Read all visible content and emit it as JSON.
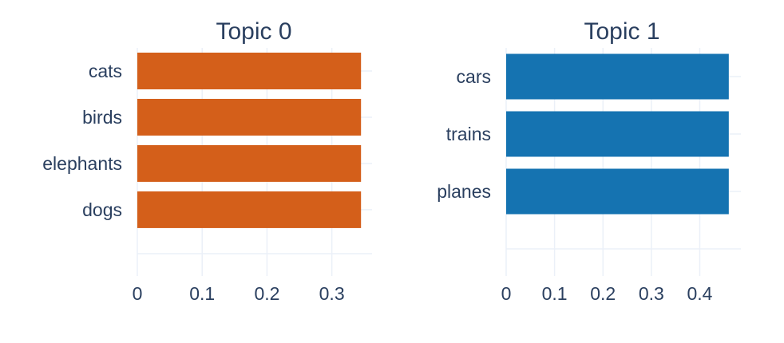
{
  "chart_data": [
    {
      "type": "bar",
      "orientation": "horizontal",
      "title": "Topic 0",
      "categories": [
        "cats",
        "birds",
        "elephants",
        "dogs"
      ],
      "values": [
        0.345,
        0.345,
        0.345,
        0.345
      ],
      "xlim": [
        0,
        0.362
      ],
      "xticks": [
        "0",
        "0.1",
        "0.2",
        "0.3"
      ],
      "color": "#d45f1a",
      "grid": true
    },
    {
      "type": "bar",
      "orientation": "horizontal",
      "title": "Topic 1",
      "categories": [
        "cars",
        "trains",
        "planes"
      ],
      "values": [
        0.46,
        0.46,
        0.46
      ],
      "xlim": [
        0,
        0.485
      ],
      "xticks": [
        "0",
        "0.1",
        "0.2",
        "0.3",
        "0.4"
      ],
      "color": "#1573b1",
      "grid": true
    }
  ]
}
